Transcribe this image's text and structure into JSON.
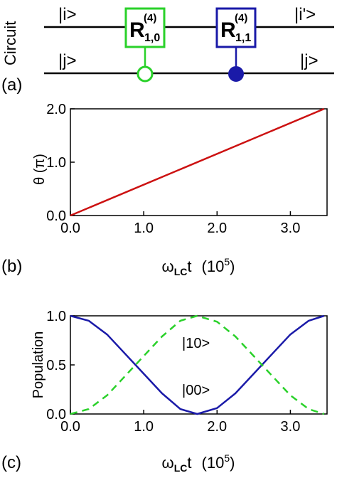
{
  "panel_a": {
    "side_label": "Circuit",
    "panel_label": "(a)",
    "top_in": "|i>",
    "bottom_in": "|j>",
    "top_out": "|i'>",
    "bottom_out": "|j>",
    "gate1": {
      "main": "R",
      "sup": "(4)",
      "sub": "1,0",
      "color": "#2ad12a",
      "control": "open"
    },
    "gate2": {
      "main": "R",
      "sup": "(4)",
      "sub": "1,1",
      "color": "#1a1aa8",
      "control": "filled"
    }
  },
  "chart_data": [
    {
      "type": "line",
      "panel_label": "(b)",
      "ylabel": "θ (π)",
      "xlabel": {
        "omega": "ω",
        "sub": "LC",
        "t": "t",
        "unit_open": "(10",
        "exp": "5",
        "unit_close": ")"
      },
      "xlim": [
        0,
        3.5
      ],
      "ylim": [
        0,
        2.0
      ],
      "xticks": [
        {
          "v": 0,
          "label": "0.0"
        },
        {
          "v": 1,
          "label": "1.0"
        },
        {
          "v": 2,
          "label": "2.0"
        },
        {
          "v": 3,
          "label": "3.0"
        }
      ],
      "yticks": [
        {
          "v": 0,
          "label": "0.0"
        },
        {
          "v": 1,
          "label": "1.0"
        },
        {
          "v": 2,
          "label": "2.0"
        }
      ],
      "series": [
        {
          "color": "#cc1111",
          "style": "solid",
          "x": [
            0.0,
            3.46
          ],
          "y": [
            0.0,
            2.0
          ]
        }
      ]
    },
    {
      "type": "line",
      "panel_label": "(c)",
      "ylabel": "Population",
      "xlabel": {
        "omega": "ω",
        "sub": "LC",
        "t": "t",
        "unit_open": "(10",
        "exp": "5",
        "unit_close": ")"
      },
      "xlim": [
        0,
        3.5
      ],
      "ylim": [
        0,
        1.0
      ],
      "xticks": [
        {
          "v": 0,
          "label": "0.0"
        },
        {
          "v": 1,
          "label": "1.0"
        },
        {
          "v": 2,
          "label": "2.0"
        },
        {
          "v": 3,
          "label": "3.0"
        }
      ],
      "yticks": [
        {
          "v": 0,
          "label": "0.0"
        },
        {
          "v": 0.5,
          "label": "0.5"
        },
        {
          "v": 1,
          "label": "1.0"
        }
      ],
      "series": [
        {
          "name": "|00>",
          "color": "#1a1aa8",
          "style": "solid",
          "x": [
            0.0,
            0.25,
            0.5,
            0.75,
            1.0,
            1.25,
            1.5,
            1.73,
            2.0,
            2.25,
            2.5,
            2.75,
            3.0,
            3.25,
            3.46
          ],
          "y": [
            1.0,
            0.95,
            0.81,
            0.61,
            0.41,
            0.21,
            0.05,
            0.0,
            0.06,
            0.21,
            0.41,
            0.61,
            0.81,
            0.95,
            1.0
          ]
        },
        {
          "name": "|10>",
          "color": "#2ad12a",
          "style": "dashed",
          "x": [
            0.0,
            0.25,
            0.5,
            0.75,
            1.0,
            1.25,
            1.5,
            1.73,
            2.0,
            2.25,
            2.5,
            2.75,
            3.0,
            3.25,
            3.46
          ],
          "y": [
            0.0,
            0.05,
            0.19,
            0.39,
            0.59,
            0.79,
            0.95,
            1.0,
            0.94,
            0.79,
            0.59,
            0.39,
            0.19,
            0.05,
            0.0
          ]
        }
      ]
    }
  ]
}
